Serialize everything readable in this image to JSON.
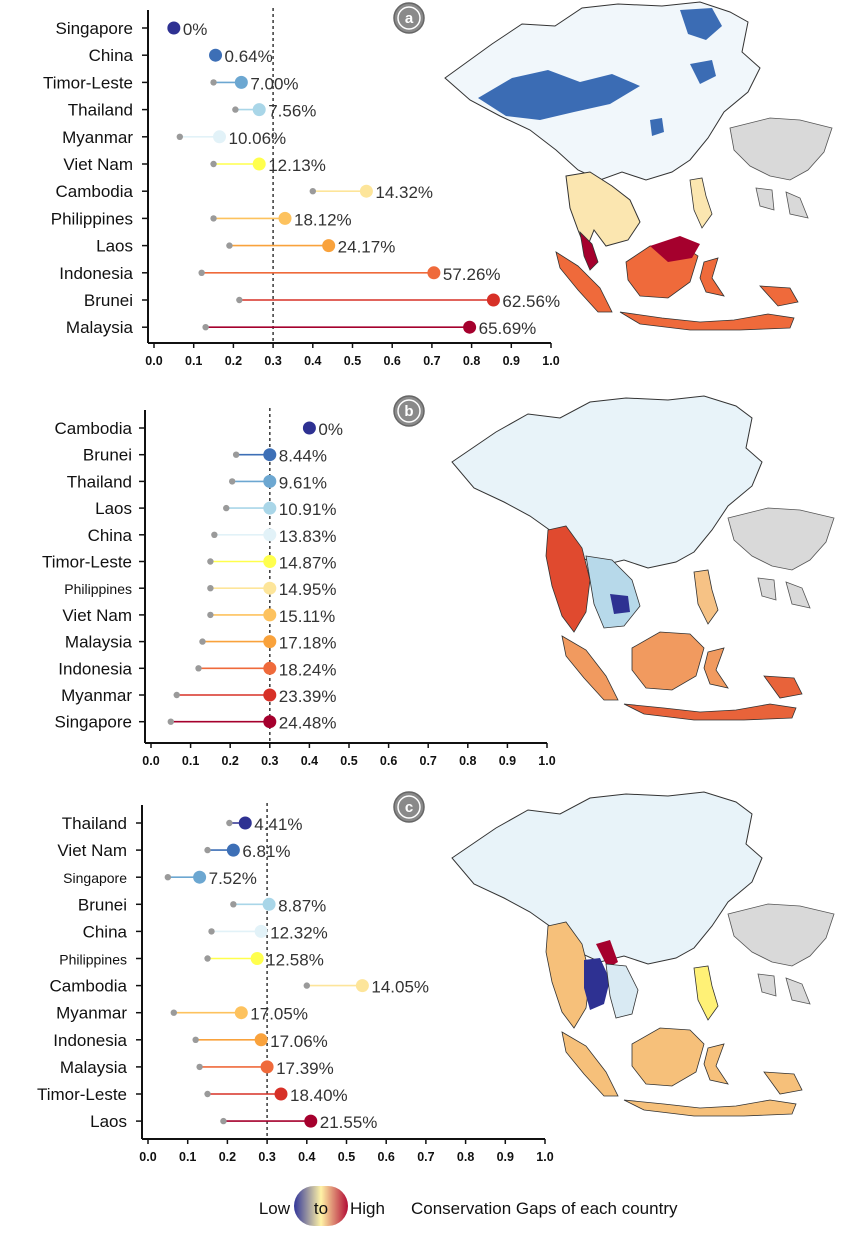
{
  "legend": {
    "low": "Low",
    "to": "to",
    "high": "High",
    "title": "Conservation Gaps of each country",
    "gradient_colors": [
      "#31359a",
      "#fff3a6",
      "#b30c35"
    ]
  },
  "colors": {
    "ramp": [
      "#2e3192",
      "#3d6fb6",
      "#6ca7d1",
      "#a9d6e8",
      "#e2f2f8",
      "#ffff4d",
      "#fde59a",
      "#fdc25e",
      "#f9a23c",
      "#ef6a3b",
      "#d73027",
      "#a5002d"
    ],
    "start_dot": "#9a9a9a",
    "threshold_line": "#444444",
    "badge": "#8a8a8a"
  },
  "chart_data": [
    {
      "type": "dumbbell",
      "panel": "a",
      "threshold": 0.3,
      "xlim": [
        0,
        1
      ],
      "xticks": [
        "0.0",
        "0.1",
        "0.2",
        "0.3",
        "0.4",
        "0.5",
        "0.6",
        "0.7",
        "0.8",
        "0.9",
        "1.0"
      ],
      "rows": [
        {
          "country": "Singapore",
          "start": null,
          "end": 0.05,
          "label": "0%"
        },
        {
          "country": "China",
          "start": null,
          "end": 0.155,
          "label": "0.64%"
        },
        {
          "country": "Timor-Leste",
          "start": 0.15,
          "end": 0.22,
          "label": "7.00%"
        },
        {
          "country": "Thailand",
          "start": 0.205,
          "end": 0.265,
          "label": "7.56%"
        },
        {
          "country": "Myanmar",
          "start": 0.065,
          "end": 0.165,
          "label": "10.06%"
        },
        {
          "country": "Viet Nam",
          "start": 0.15,
          "end": 0.265,
          "label": "12.13%"
        },
        {
          "country": "Cambodia",
          "start": 0.4,
          "end": 0.535,
          "label": "14.32%"
        },
        {
          "country": "Philippines",
          "start": 0.15,
          "end": 0.33,
          "label": "18.12%"
        },
        {
          "country": "Laos",
          "start": 0.19,
          "end": 0.44,
          "label": "24.17%"
        },
        {
          "country": "Indonesia",
          "start": 0.12,
          "end": 0.705,
          "label": "57.26%"
        },
        {
          "country": "Brunei",
          "start": 0.215,
          "end": 0.855,
          "label": "62.56%"
        },
        {
          "country": "Malaysia",
          "start": 0.13,
          "end": 0.795,
          "label": "65.69%"
        }
      ]
    },
    {
      "type": "dumbbell",
      "panel": "b",
      "threshold": 0.3,
      "xlim": [
        0,
        1
      ],
      "xticks": [
        "0.0",
        "0.1",
        "0.2",
        "0.3",
        "0.4",
        "0.5",
        "0.6",
        "0.7",
        "0.8",
        "0.9",
        "1.0"
      ],
      "rows": [
        {
          "country": "Cambodia",
          "start": null,
          "end": 0.4,
          "label": "0%"
        },
        {
          "country": "Brunei",
          "start": 0.215,
          "end": 0.3,
          "label": "8.44%"
        },
        {
          "country": "Thailand",
          "start": 0.205,
          "end": 0.3,
          "label": "9.61%"
        },
        {
          "country": "Laos",
          "start": 0.19,
          "end": 0.3,
          "label": "10.91%"
        },
        {
          "country": "China",
          "start": 0.16,
          "end": 0.3,
          "label": "13.83%"
        },
        {
          "country": "Timor-Leste",
          "start": 0.15,
          "end": 0.3,
          "label": "14.87%"
        },
        {
          "country": "Philippines",
          "start": 0.15,
          "end": 0.3,
          "label": "14.95%"
        },
        {
          "country": "Viet Nam",
          "start": 0.15,
          "end": 0.3,
          "label": "15.11%"
        },
        {
          "country": "Malaysia",
          "start": 0.13,
          "end": 0.3,
          "label": "17.18%"
        },
        {
          "country": "Indonesia",
          "start": 0.12,
          "end": 0.3,
          "label": "18.24%"
        },
        {
          "country": "Myanmar",
          "start": 0.065,
          "end": 0.3,
          "label": "23.39%"
        },
        {
          "country": "Singapore",
          "start": 0.05,
          "end": 0.3,
          "label": "24.48%"
        }
      ]
    },
    {
      "type": "dumbbell",
      "panel": "c",
      "threshold": 0.3,
      "xlim": [
        0,
        1
      ],
      "xticks": [
        "0.0",
        "0.1",
        "0.2",
        "0.3",
        "0.4",
        "0.5",
        "0.6",
        "0.7",
        "0.8",
        "0.9",
        "1.0"
      ],
      "rows": [
        {
          "country": "Thailand",
          "start": 0.205,
          "end": 0.245,
          "label": "4.41%"
        },
        {
          "country": "Viet Nam",
          "start": 0.15,
          "end": 0.215,
          "label": "6.81%"
        },
        {
          "country": "Singapore",
          "start": 0.05,
          "end": 0.13,
          "label": "7.52%"
        },
        {
          "country": "Brunei",
          "start": 0.215,
          "end": 0.305,
          "label": "8.87%"
        },
        {
          "country": "China",
          "start": 0.16,
          "end": 0.285,
          "label": "12.32%"
        },
        {
          "country": "Philippines",
          "start": 0.15,
          "end": 0.275,
          "label": "12.58%"
        },
        {
          "country": "Cambodia",
          "start": 0.4,
          "end": 0.54,
          "label": "14.05%"
        },
        {
          "country": "Myanmar",
          "start": 0.065,
          "end": 0.235,
          "label": "17.05%"
        },
        {
          "country": "Indonesia",
          "start": 0.12,
          "end": 0.285,
          "label": "17.06%"
        },
        {
          "country": "Malaysia",
          "start": 0.13,
          "end": 0.3,
          "label": "17.39%"
        },
        {
          "country": "Timor-Leste",
          "start": 0.15,
          "end": 0.335,
          "label": "18.40%"
        },
        {
          "country": "Laos",
          "start": 0.19,
          "end": 0.41,
          "label": "21.55%"
        }
      ]
    }
  ]
}
